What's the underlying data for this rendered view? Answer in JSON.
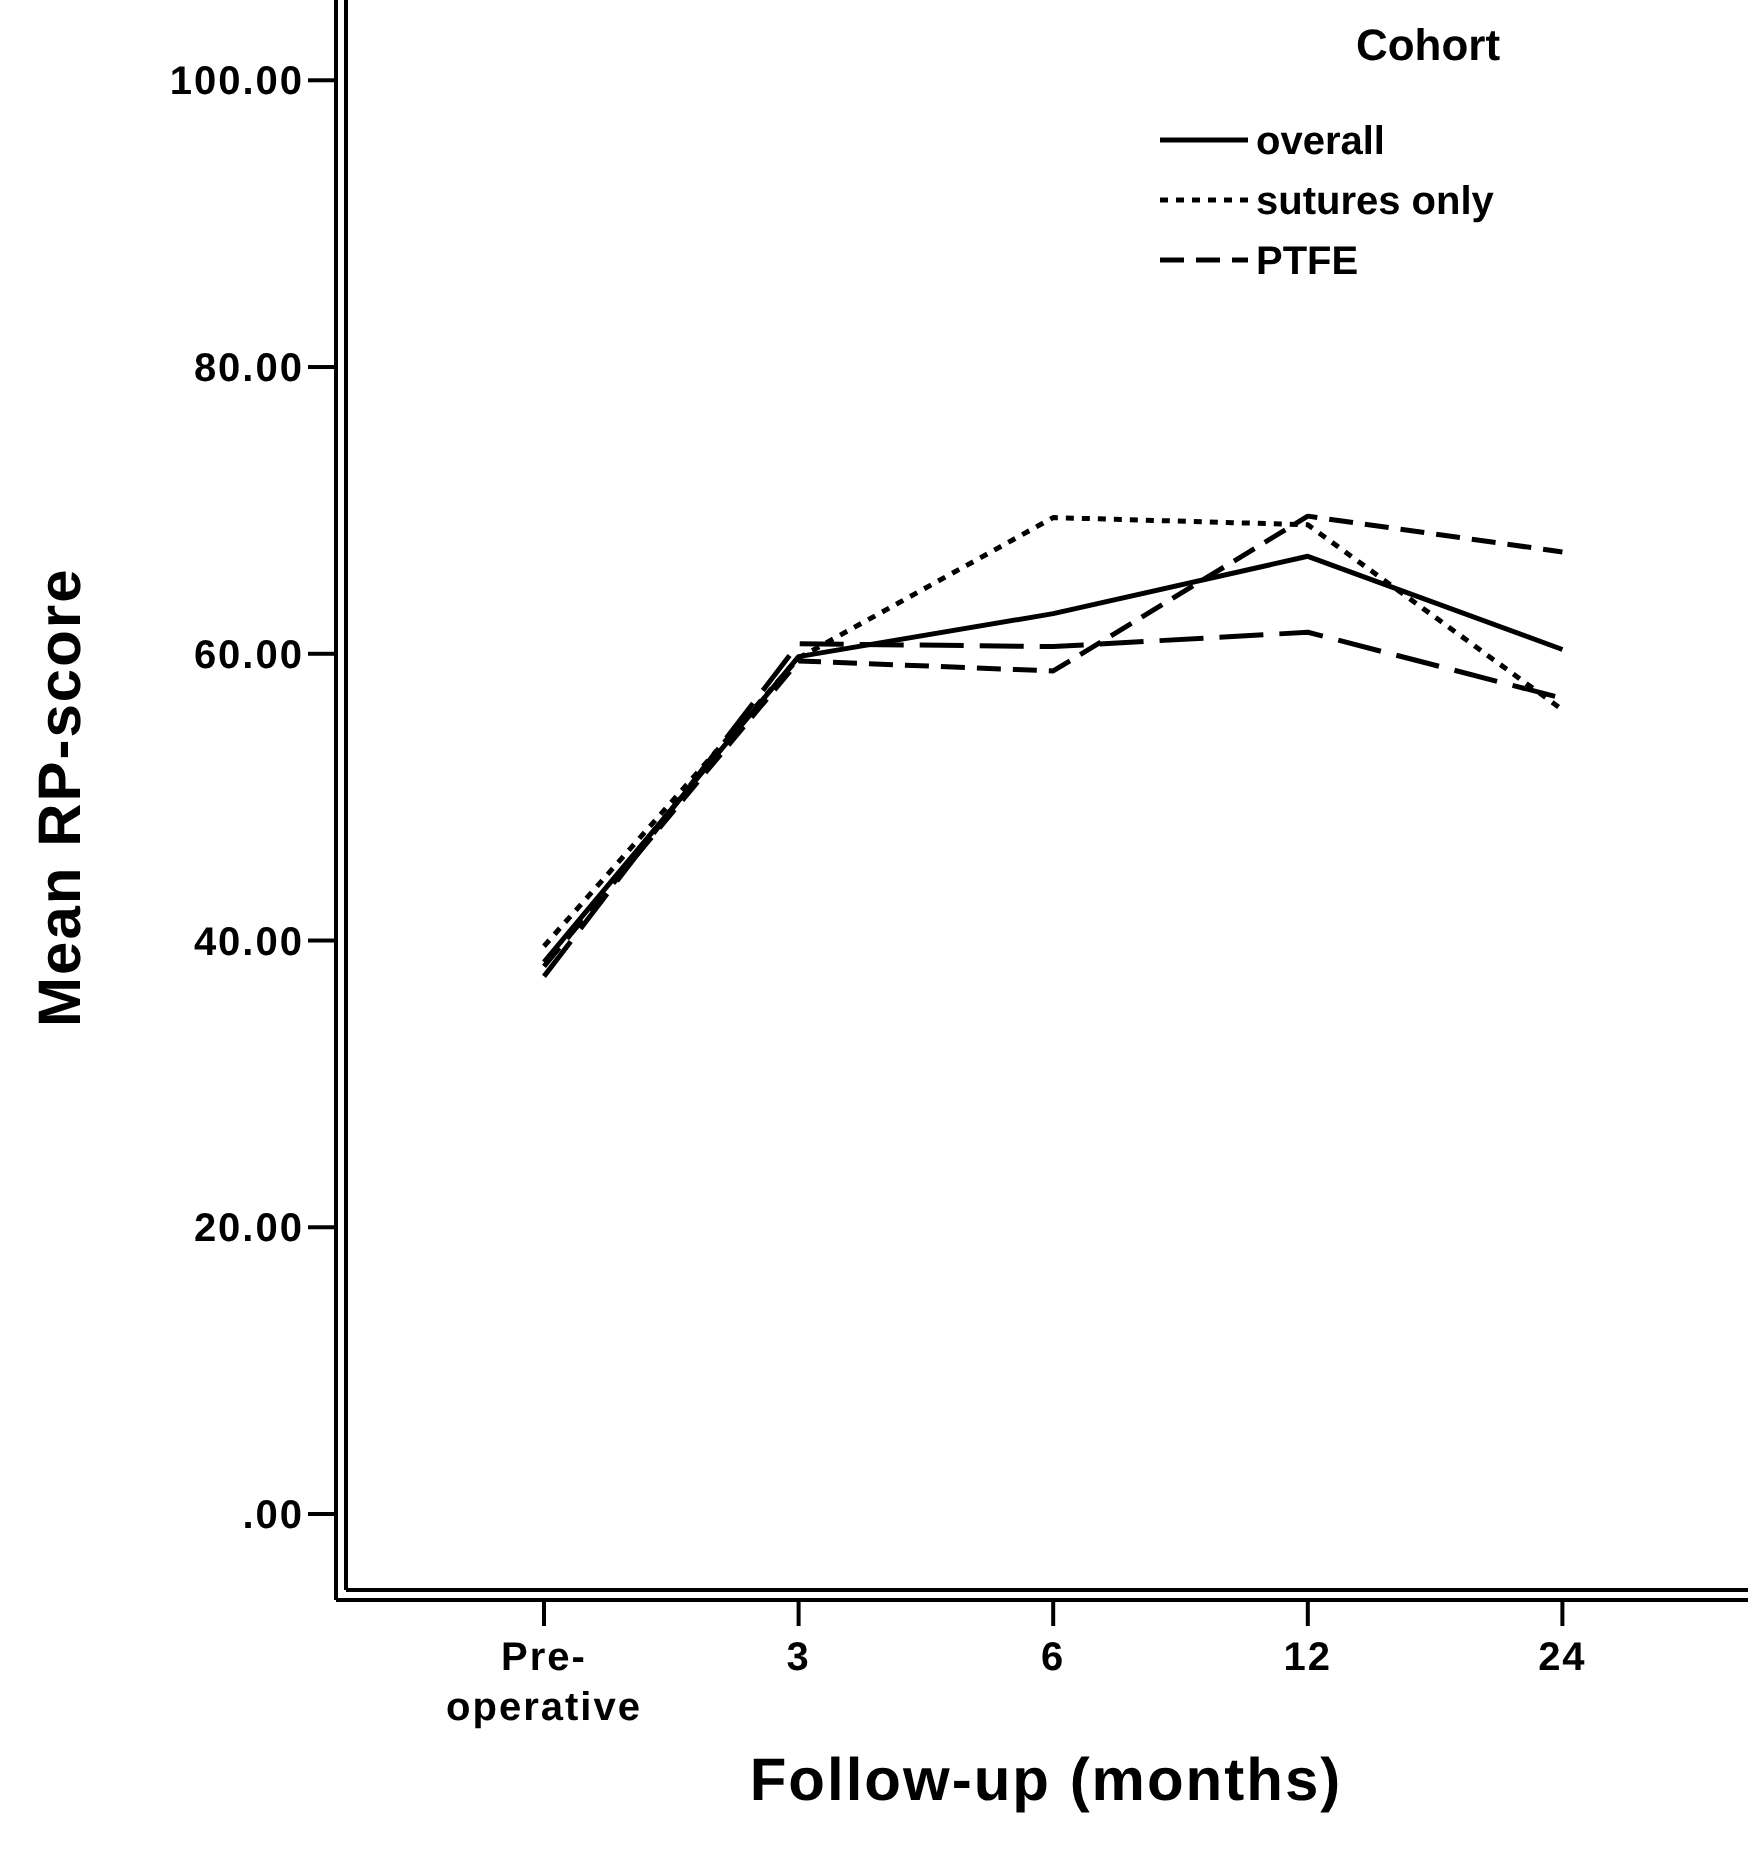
{
  "chart_data": {
    "type": "line",
    "xlabel": "Follow-up (months)",
    "ylabel": "Mean RP-score",
    "legend_title": "Cohort",
    "legend": "top right",
    "categories": [
      "Pre-operative",
      "3",
      "6",
      "12",
      "24"
    ],
    "ylim": [
      -5.3,
      105.6
    ],
    "yticks": [
      {
        "value": 0,
        "label": ".00"
      },
      {
        "value": 20,
        "label": "20.00"
      },
      {
        "value": 40,
        "label": "40.00"
      },
      {
        "value": 60,
        "label": "60.00"
      },
      {
        "value": 80,
        "label": "80.00"
      },
      {
        "value": 100,
        "label": "100.00"
      }
    ],
    "grid": false,
    "series": [
      {
        "name": "overall",
        "color": "#000000",
        "line_style": "solid",
        "values": [
          38.5,
          59.8,
          62.8,
          66.8,
          60.3
        ]
      },
      {
        "name": "sutures only",
        "color": "#000000",
        "line_style": "dotted",
        "values": [
          39.6,
          59.7,
          69.5,
          69.0,
          56.1
        ]
      },
      {
        "color": "#000000",
        "line_style": "dashed",
        "values": [
          37.5,
          60.7,
          60.5,
          61.5,
          56.9
        ]
      },
      {
        "name": "PTFE",
        "color": "#000000",
        "line_style": "dashed",
        "values": [
          38.2,
          59.5,
          58.8,
          69.6,
          67.1
        ]
      }
    ]
  }
}
